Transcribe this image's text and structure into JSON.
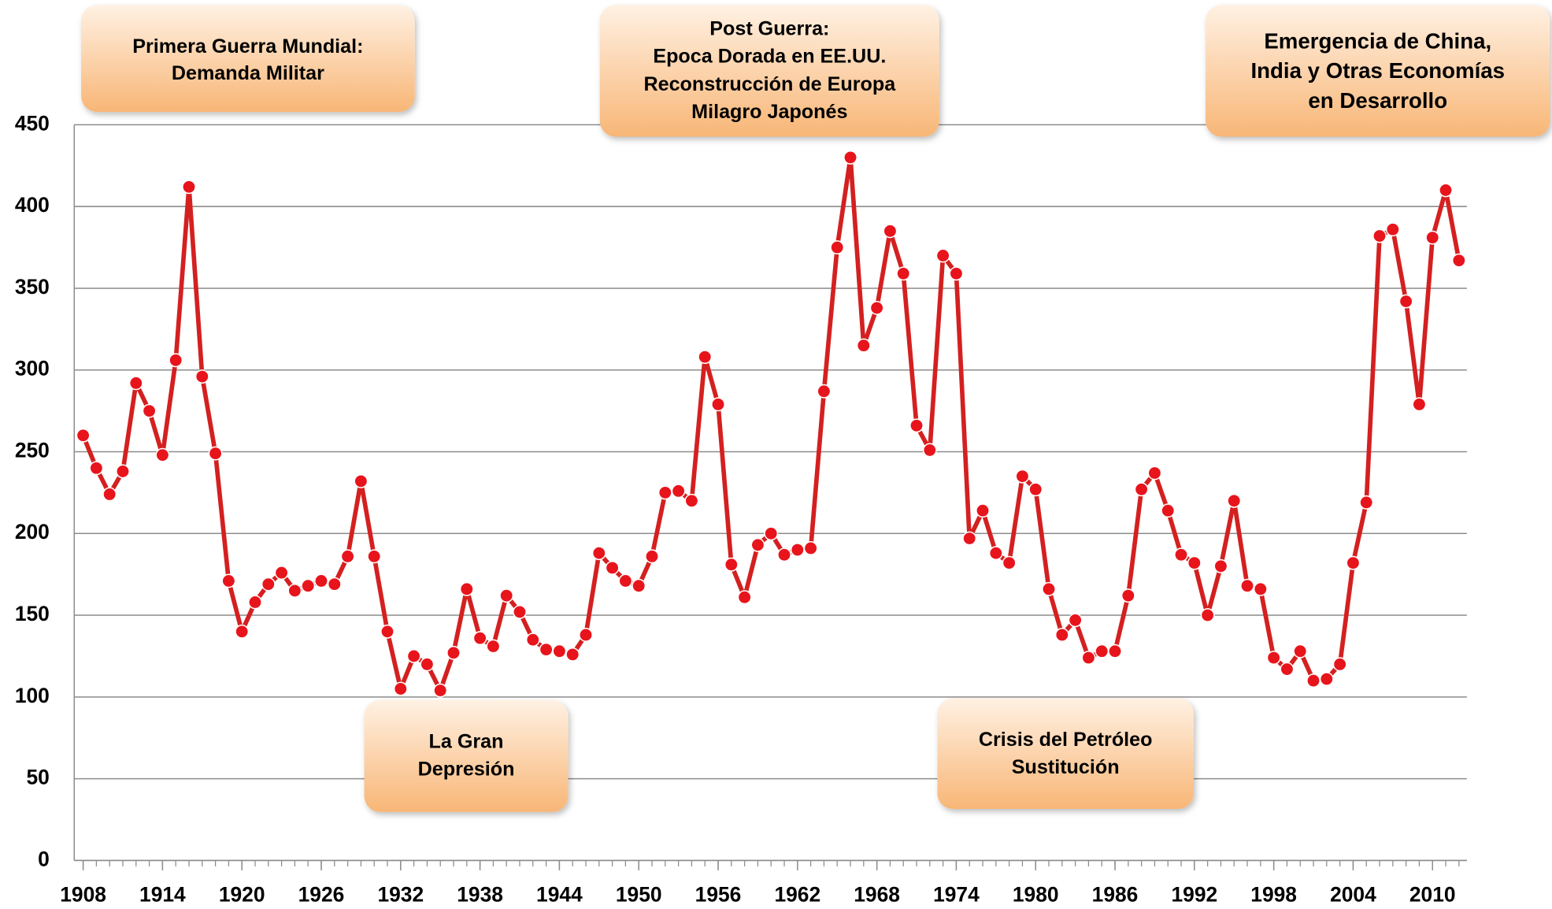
{
  "chart_data": {
    "type": "line",
    "x": [
      1908,
      1909,
      1910,
      1911,
      1912,
      1913,
      1914,
      1915,
      1916,
      1917,
      1918,
      1919,
      1920,
      1921,
      1922,
      1923,
      1924,
      1925,
      1926,
      1927,
      1928,
      1929,
      1930,
      1931,
      1932,
      1933,
      1934,
      1935,
      1936,
      1937,
      1938,
      1939,
      1940,
      1941,
      1942,
      1943,
      1944,
      1945,
      1946,
      1947,
      1948,
      1949,
      1950,
      1951,
      1952,
      1953,
      1954,
      1955,
      1956,
      1957,
      1958,
      1959,
      1960,
      1961,
      1962,
      1963,
      1964,
      1965,
      1966,
      1967,
      1968,
      1969,
      1970,
      1971,
      1972,
      1973,
      1974,
      1975,
      1976,
      1977,
      1978,
      1979,
      1980,
      1981,
      1982,
      1983,
      1984,
      1985,
      1986,
      1987,
      1988,
      1989,
      1990,
      1991,
      1992,
      1993,
      1994,
      1995,
      1996,
      1997,
      1998,
      1999,
      2000,
      2001,
      2002,
      2003,
      2004,
      2005,
      2006,
      2007,
      2008,
      2009,
      2010,
      2011,
      2012
    ],
    "series": [
      {
        "color": "#d42020",
        "marker_color": "#e8141c",
        "values": [
          260,
          240,
          224,
          238,
          292,
          275,
          248,
          306,
          412,
          296,
          249,
          171,
          140,
          158,
          169,
          176,
          165,
          168,
          171,
          169,
          186,
          232,
          186,
          140,
          105,
          125,
          120,
          104,
          127,
          166,
          136,
          131,
          162,
          152,
          135,
          129,
          128,
          126,
          138,
          188,
          179,
          171,
          168,
          186,
          225,
          226,
          220,
          308,
          279,
          181,
          161,
          193,
          200,
          187,
          190,
          191,
          287,
          375,
          430,
          315,
          338,
          385,
          359,
          266,
          251,
          370,
          359,
          197,
          214,
          188,
          182,
          235,
          227,
          166,
          138,
          147,
          124,
          128,
          128,
          162,
          227,
          237,
          214,
          187,
          182,
          150,
          180,
          220,
          168,
          166,
          124,
          117,
          128,
          110,
          111,
          120,
          182,
          219,
          382,
          386,
          342,
          279,
          381,
          410,
          367
        ]
      }
    ],
    "xlim": [
      1907,
      2013
    ],
    "xticks": [
      1908,
      1914,
      1920,
      1926,
      1932,
      1938,
      1944,
      1950,
      1956,
      1962,
      1968,
      1974,
      1980,
      1986,
      1992,
      1998,
      2004,
      2010
    ],
    "ylim": [
      0,
      450
    ],
    "yticks": [
      0,
      50,
      100,
      150,
      200,
      250,
      300,
      350,
      400,
      450
    ],
    "grid": true,
    "annotations": [
      [
        "Primera Guerra Mundial:",
        "Demanda Militar"
      ],
      [
        "Post Guerra:",
        "Epoca Dorada en EE.UU.",
        "Reconstrucción de Europa",
        "Milagro Japonés"
      ],
      [
        "Emergencia de China,",
        "India y Otras Economías",
        "en Desarrollo"
      ],
      [
        "La Gran",
        "Depresión"
      ],
      [
        "Crisis del Petróleo",
        "Sustitución"
      ]
    ]
  }
}
